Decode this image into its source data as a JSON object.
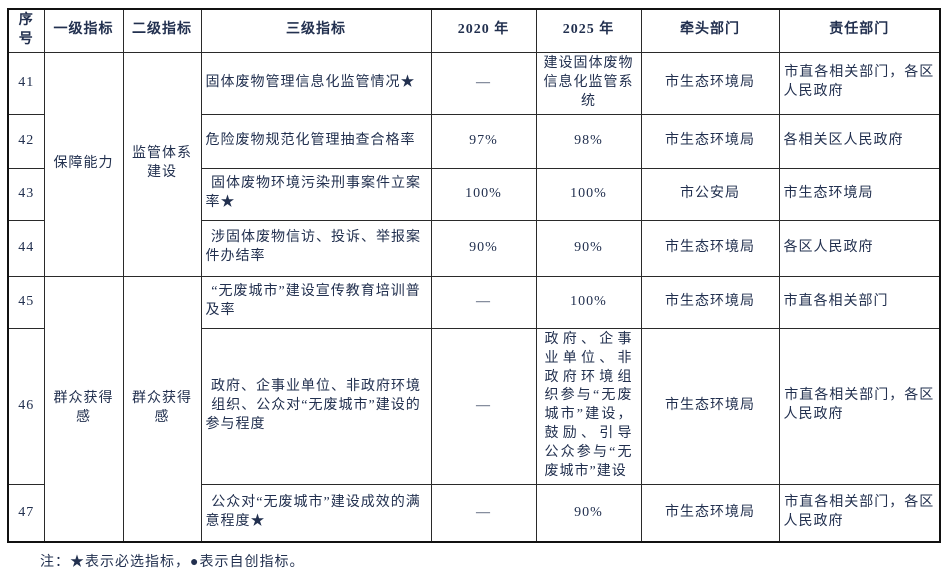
{
  "doc": {
    "type": "indicator-table-continuation",
    "text_color": "#22304f",
    "border_color": "#2a2a2a",
    "background": "#ffffff"
  },
  "table": {
    "headers": {
      "no": "序号",
      "l1": "一级指标",
      "l2": "二级指标",
      "l3": "三级指标",
      "y2020": "2020 年",
      "y2025": "2025 年",
      "lead": "牵头部门",
      "resp": "责任部门"
    },
    "groups": [
      {
        "l1": "保障能力",
        "l2": "监管体系建设",
        "rows": "41-44"
      },
      {
        "l1": "群众获得感",
        "l2": "群众获得感",
        "rows": "45-47"
      }
    ],
    "rows": [
      {
        "no": "41",
        "l3": "固体废物管理信息化监管情况★",
        "y2020": "—",
        "y2025": "建设固体废物信息化监管系统",
        "lead": "市生态环境局",
        "resp": "市直各相关部门，各区人民政府"
      },
      {
        "no": "42",
        "l3": "危险废物规范化管理抽查合格率",
        "y2020": "97%",
        "y2025": "98%",
        "lead": "市生态环境局",
        "resp": "各相关区人民政府"
      },
      {
        "no": "43",
        "l3": "固体废物环境污染刑事案件立案率★",
        "y2020": "100%",
        "y2025": "100%",
        "lead": "市公安局",
        "resp": "市生态环境局"
      },
      {
        "no": "44",
        "l3": "涉固体废物信访、投诉、举报案件办结率",
        "y2020": "90%",
        "y2025": "90%",
        "lead": "市生态环境局",
        "resp": "各区人民政府"
      },
      {
        "no": "45",
        "l3": "“无废城市”建设宣传教育培训普及率",
        "y2020": "—",
        "y2025": "100%",
        "lead": "市生态环境局",
        "resp": "市直各相关部门"
      },
      {
        "no": "46",
        "l3": "政府、企事业单位、非政府环境组织、公众对“无废城市”建设的参与程度",
        "y2020": "—",
        "y2025": "政府、企事业单位、非政府环境组织参与“无废城市”建设，鼓励、引导公众参与“无废城市”建设",
        "lead": "市生态环境局",
        "resp": "市直各相关部门，各区人民政府"
      },
      {
        "no": "47",
        "l3": "公众对“无废城市”建设成效的满意程度★",
        "y2020": "—",
        "y2025": "90%",
        "lead": "市生态环境局",
        "resp": "市直各相关部门，各区人民政府"
      }
    ]
  },
  "note": "注：★表示必选指标，●表示自创指标。"
}
